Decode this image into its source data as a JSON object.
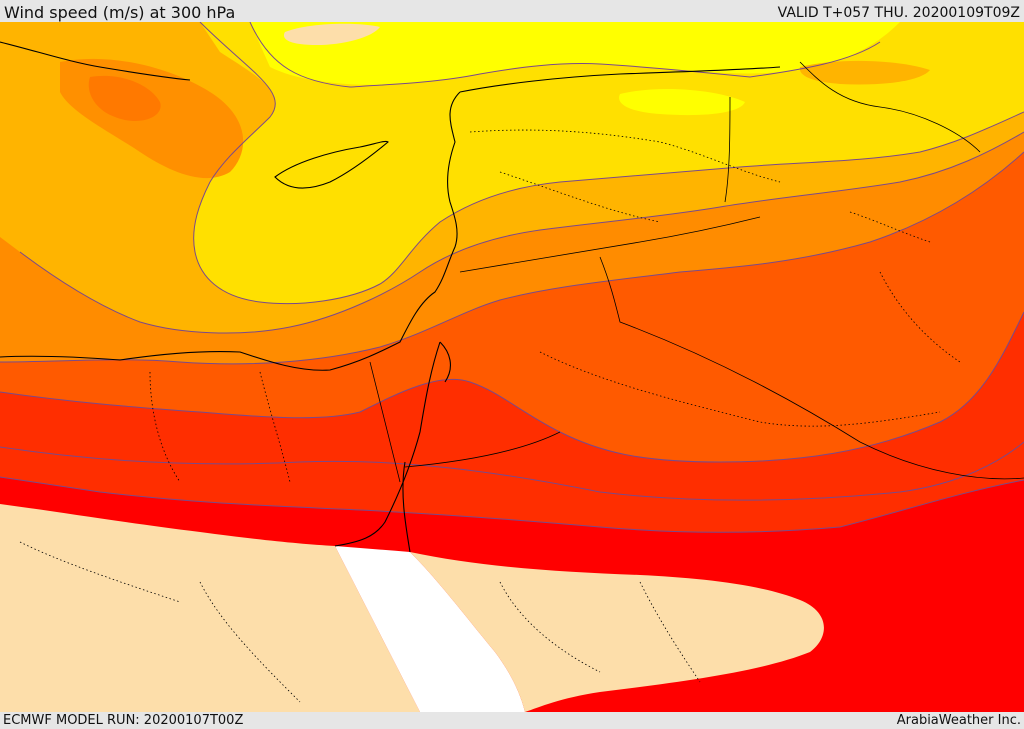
{
  "header": {
    "title": "Wind speed (m/s) at 300 hPa",
    "valid_time": "VALID T+057 THU. 20200109T09Z"
  },
  "footer": {
    "model_run": "ECMWF MODEL RUN: 20200107T00Z",
    "credit": "ArabiaWeather Inc."
  },
  "map": {
    "field": "wind speed at 300 hPa",
    "region": "Eastern Mediterranean / Levant / northern Arabia",
    "colors": {
      "band_1": "#ffff00",
      "band_2": "#ffe000",
      "band_3": "#ffb400",
      "band_4": "#ff8c00",
      "band_5": "#ff5a00",
      "band_6": "#ff2e00",
      "band_7": "#ff0000",
      "land_mask": "#fddeaa",
      "sea_mask": "#ffffff",
      "contour": "#7a4a8a",
      "coastline": "#000000"
    }
  }
}
